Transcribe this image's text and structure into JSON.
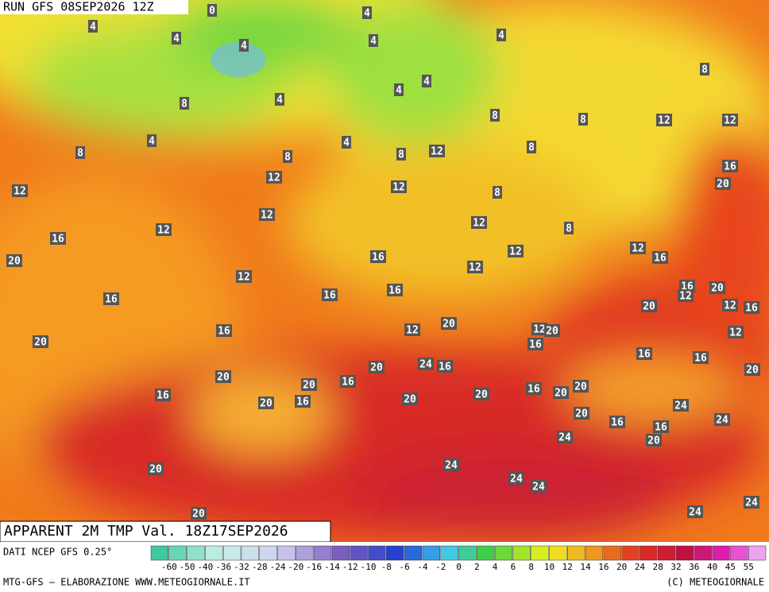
{
  "header": {
    "run": "RUN GFS 08SEP2026 12Z",
    "title": "APPARENT 2M TMP Val. 18Z17SEP2026"
  },
  "footer": {
    "source": "DATI NCEP GFS 0.25°",
    "credit": "MTG-GFS — ELABORAZIONE WWW.METEOGIORNALE.IT",
    "copyright": "(C) METEOGIORNALE"
  },
  "legend": {
    "labels": [
      "-60",
      "-50",
      "-40",
      "-36",
      "-32",
      "-28",
      "-24",
      "-20",
      "-16",
      "-14",
      "-12",
      "-10",
      "-8",
      "-6",
      "-4",
      "-2",
      "0",
      "2",
      "4",
      "6",
      "8",
      "10",
      "12",
      "14",
      "16",
      "20",
      "24",
      "28",
      "32",
      "36",
      "40",
      "45",
      "55"
    ]
  },
  "contour_labels": [
    "0",
    "4",
    "4",
    "4",
    "4",
    "4",
    "4",
    "8",
    "4",
    "4",
    "8",
    "4",
    "8",
    "8",
    "12",
    "12",
    "4",
    "8",
    "4",
    "8",
    "8",
    "12",
    "8",
    "16",
    "12",
    "20",
    "12",
    "12",
    "8",
    "12",
    "12",
    "8",
    "12",
    "16",
    "12",
    "12",
    "20",
    "16",
    "16",
    "12",
    "12",
    "16",
    "20",
    "12",
    "16",
    "16",
    "16",
    "20",
    "12",
    "16",
    "20",
    "12",
    "12",
    "20",
    "12",
    "16",
    "20",
    "16",
    "16",
    "16",
    "24",
    "16",
    "20",
    "20",
    "20",
    "16",
    "20",
    "16",
    "20",
    "16",
    "20",
    "20",
    "20",
    "16",
    "20",
    "24",
    "20",
    "16",
    "24",
    "16",
    "24",
    "20",
    "24",
    "20",
    "24",
    "24",
    "20",
    "24",
    "24"
  ]
}
